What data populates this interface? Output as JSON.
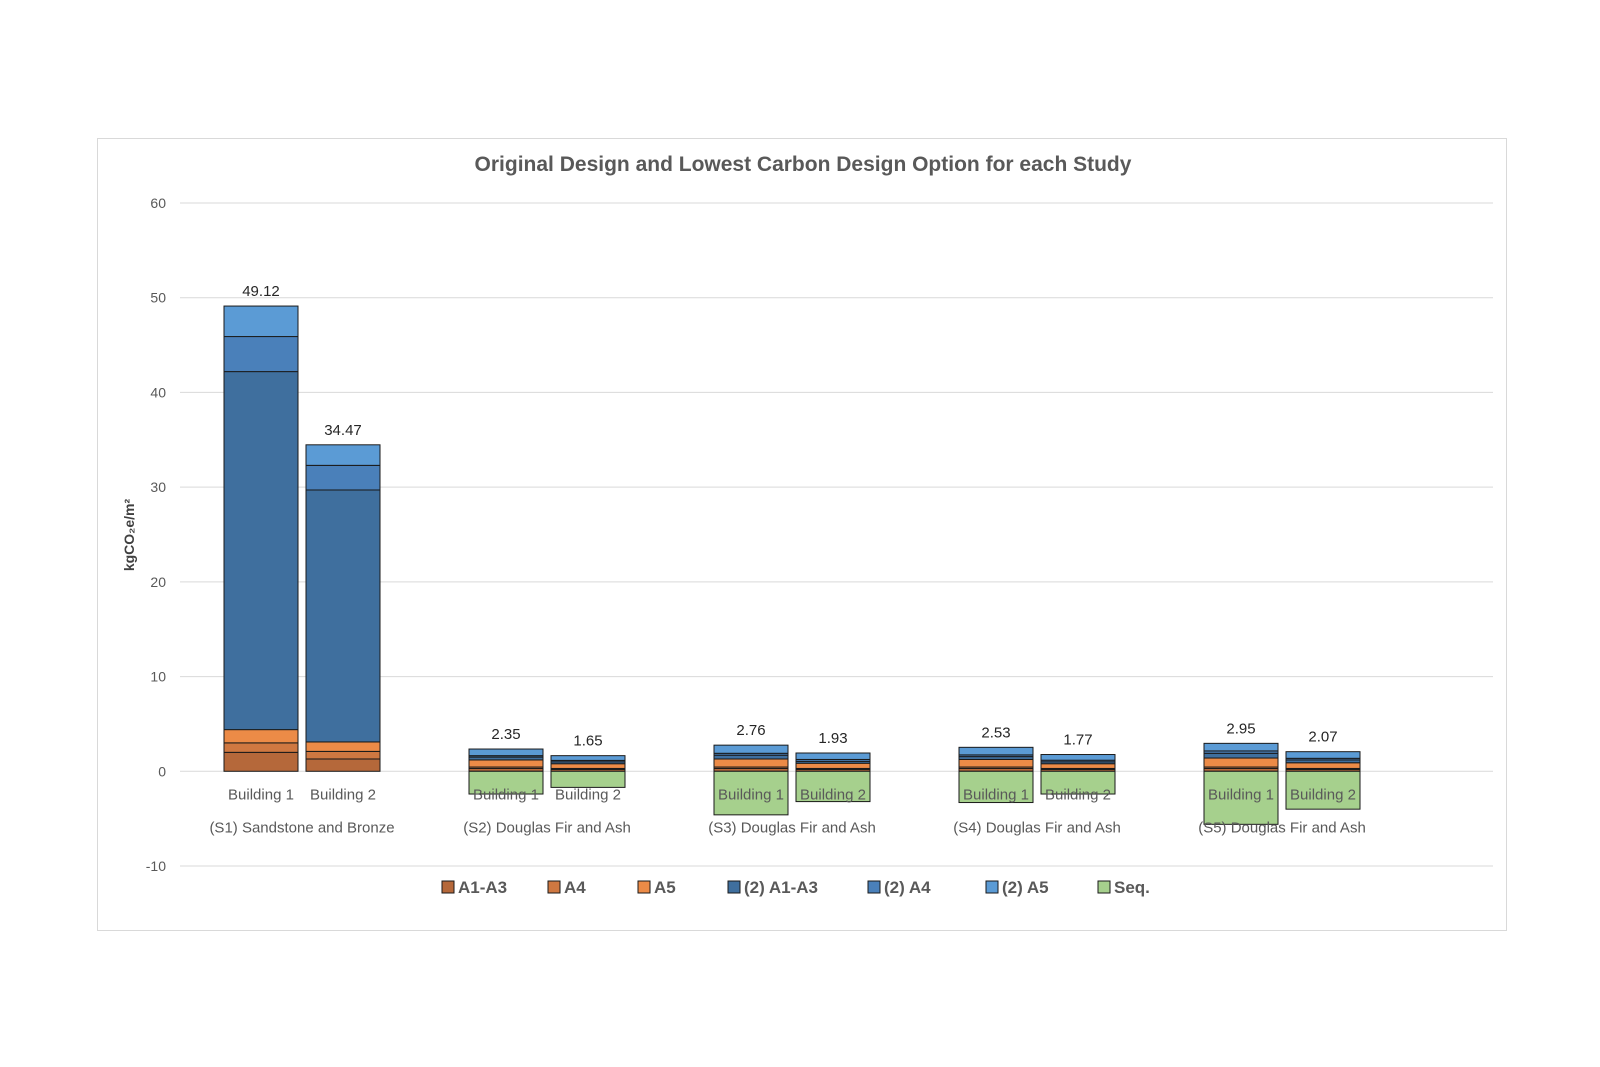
{
  "chart_data": {
    "type": "bar",
    "stacked": true,
    "title": "Original Design and Lowest Carbon Design Option for each Study",
    "xlabel": "",
    "ylabel": "kgCO₂e/m²",
    "ylim": [
      -10,
      60
    ],
    "yticks": [
      -10,
      0,
      10,
      20,
      30,
      40,
      50,
      60
    ],
    "grid": true,
    "legend_position": "bottom",
    "groups": [
      "(S1) Sandstone and Bronze",
      "(S2) Douglas Fir and Ash",
      "(S3) Douglas Fir and Ash",
      "(S4) Douglas Fir and Ash",
      "(S5) Douglas Fir and Ash"
    ],
    "bar_labels": [
      "Building 1",
      "Building 2"
    ],
    "bars": [
      {
        "group": 0,
        "label": "Building 1",
        "total_label": "49.12"
      },
      {
        "group": 0,
        "label": "Building 2",
        "total_label": "34.47"
      },
      {
        "group": 1,
        "label": "Building 1",
        "total_label": "2.35"
      },
      {
        "group": 1,
        "label": "Building 2",
        "total_label": "1.65"
      },
      {
        "group": 2,
        "label": "Building 1",
        "total_label": "2.76"
      },
      {
        "group": 2,
        "label": "Building 2",
        "total_label": "1.93"
      },
      {
        "group": 3,
        "label": "Building 1",
        "total_label": "2.53"
      },
      {
        "group": 3,
        "label": "Building 2",
        "total_label": "1.77"
      },
      {
        "group": 4,
        "label": "Building 1",
        "total_label": "2.95"
      },
      {
        "group": 4,
        "label": "Building 2",
        "total_label": "2.07"
      }
    ],
    "series": [
      {
        "name": "A1-A3",
        "color": "#b5683a",
        "values": [
          2.0,
          1.3,
          0.3,
          0.2,
          0.3,
          0.2,
          0.3,
          0.2,
          0.3,
          0.2
        ]
      },
      {
        "name": "A4",
        "color": "#cf7841",
        "values": [
          1.0,
          0.8,
          0.15,
          0.1,
          0.15,
          0.1,
          0.15,
          0.1,
          0.15,
          0.1
        ]
      },
      {
        "name": "A5",
        "color": "#ec8b47",
        "values": [
          1.4,
          1.0,
          0.75,
          0.5,
          0.85,
          0.55,
          0.8,
          0.5,
          0.95,
          0.6
        ]
      },
      {
        "name": "(2) A1-A3",
        "color": "#3f6f9e",
        "values": [
          37.8,
          26.6,
          0.3,
          0.2,
          0.4,
          0.2,
          0.3,
          0.2,
          0.5,
          0.3
        ]
      },
      {
        "name": "(2) A4",
        "color": "#4a80ba",
        "values": [
          3.7,
          2.6,
          0.15,
          0.15,
          0.2,
          0.2,
          0.18,
          0.17,
          0.25,
          0.17
        ]
      },
      {
        "name": "(2) A5",
        "color": "#5b9bd5",
        "values": [
          3.22,
          2.17,
          0.7,
          0.5,
          0.86,
          0.68,
          0.8,
          0.6,
          0.8,
          0.7
        ]
      },
      {
        "name": "Seq.",
        "color": "#a6d08d",
        "values": [
          0,
          0,
          -2.4,
          -1.7,
          -4.6,
          -3.2,
          -3.3,
          -2.4,
          -5.6,
          -4.0
        ]
      }
    ]
  }
}
